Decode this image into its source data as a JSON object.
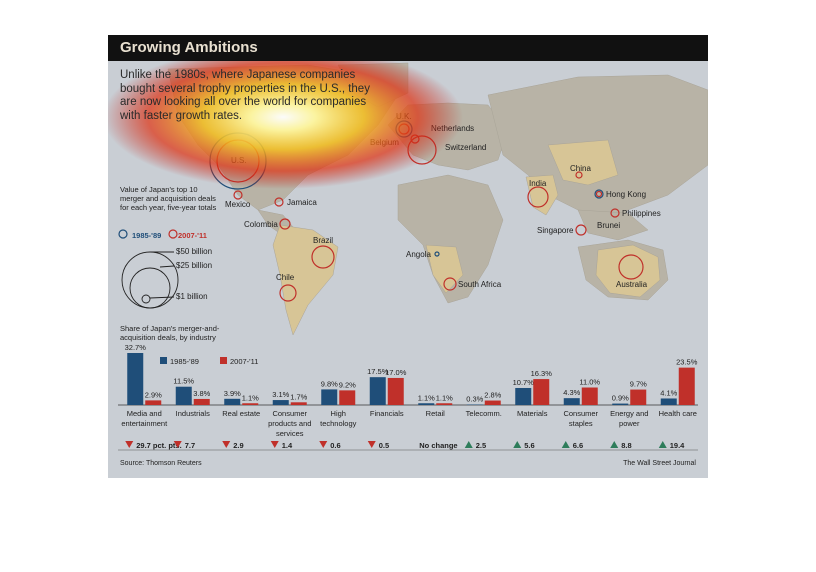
{
  "header": {
    "title": "Growing Ambitions",
    "subtitle": "Unlike the 1980s, where Japanese companies bought several trophy properties in the U.S., they are now looking all over the world for companies with faster growth rates."
  },
  "colors": {
    "series_1985": "#1f4e79",
    "series_2007": "#c0302a",
    "land": "#b8b3a6",
    "highlight_land": "#d7c596",
    "ocean": "#c9ced4"
  },
  "map": {
    "legend_title": "Value of Japan's top 10 merger and acquisition deals for each year, five-year totals",
    "legend_1985": "1985-'89",
    "legend_2007": "2007-'11",
    "size_labels": [
      "$50 billion",
      "$25 billion",
      "$1 billion"
    ],
    "countries": [
      "U.S.",
      "U.K.",
      "Netherlands",
      "Belgium",
      "Switzerland",
      "Mexico",
      "Jamaica",
      "Colombia",
      "Brazil",
      "Chile",
      "Angola",
      "South Africa",
      "India",
      "China",
      "Hong Kong",
      "Philippines",
      "Singapore",
      "Brunei",
      "Australia"
    ]
  },
  "chart_data": {
    "type": "bar",
    "title": "Share of Japan's merger-and-acquisition deals, by industry",
    "categories": [
      "Media and entertainment",
      "Industrials",
      "Real estate",
      "Consumer products and services",
      "High technology",
      "Financials",
      "Retail",
      "Telecomm.",
      "Materials",
      "Consumer staples",
      "Energy and power",
      "Health care"
    ],
    "series": [
      {
        "name": "1985-'89",
        "values": [
          32.7,
          11.5,
          3.9,
          3.1,
          9.8,
          17.5,
          1.1,
          0.3,
          10.7,
          4.3,
          0.9,
          4.1
        ],
        "labels": [
          "32.7%",
          "11.5%",
          "3.9%",
          "3.1%",
          "9.8%",
          "17.5%",
          "1.1%",
          "0.3%",
          "10.7%",
          "4.3%",
          "0.9%",
          "4.1%"
        ]
      },
      {
        "name": "2007-'11",
        "values": [
          2.9,
          3.8,
          1.1,
          1.7,
          9.2,
          17.0,
          1.1,
          2.8,
          16.3,
          11.0,
          9.7,
          23.5
        ],
        "labels": [
          "2.9%",
          "3.8%",
          "1.1%",
          "1.7%",
          "9.2%",
          "17.0%",
          "1.1%",
          "2.8%",
          "16.3%",
          "11.0%",
          "9.7%",
          "23.5%"
        ]
      }
    ],
    "change": [
      {
        "dir": "down",
        "text": "29.7 pct. pts."
      },
      {
        "dir": "down",
        "text": "7.7"
      },
      {
        "dir": "down",
        "text": "2.9"
      },
      {
        "dir": "down",
        "text": "1.4"
      },
      {
        "dir": "down",
        "text": "0.6"
      },
      {
        "dir": "down",
        "text": "0.5"
      },
      {
        "dir": "none",
        "text": "No change"
      },
      {
        "dir": "up",
        "text": "2.5"
      },
      {
        "dir": "up",
        "text": "5.6"
      },
      {
        "dir": "up",
        "text": "6.6"
      },
      {
        "dir": "up",
        "text": "8.8"
      },
      {
        "dir": "up",
        "text": "19.4"
      }
    ]
  },
  "footer": {
    "source": "Source: Thomson Reuters",
    "publisher": "The Wall Street Journal"
  }
}
